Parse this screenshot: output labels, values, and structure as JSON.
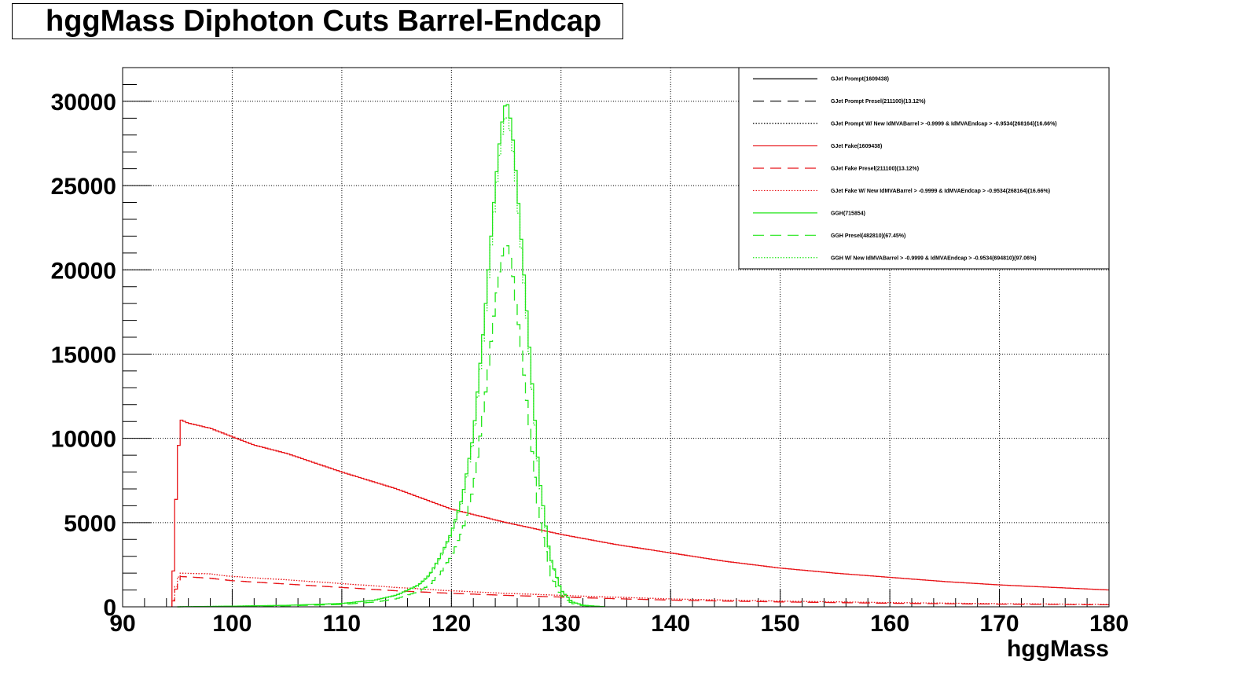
{
  "chart_data": {
    "type": "line",
    "title": "hggMass Diphoton Cuts Barrel-Endcap",
    "xlabel": "hggMass",
    "ylabel": "",
    "xlim": [
      90,
      180
    ],
    "ylim": [
      0,
      32000
    ],
    "x_ticks": [
      "90",
      "100",
      "110",
      "120",
      "130",
      "140",
      "150",
      "160",
      "170",
      "180"
    ],
    "y_ticks": [
      "0",
      "5000",
      "10000",
      "15000",
      "20000",
      "25000",
      "30000"
    ],
    "grid": true,
    "legend_position": "top-right",
    "series": [
      {
        "name": "GJet Prompt(1609438)",
        "color": "#000000",
        "style": "solid",
        "points": []
      },
      {
        "name": "GJet Prompt Presel(211100)(13.12%)",
        "color": "#000000",
        "style": "dashed",
        "points": []
      },
      {
        "name": "GJet Prompt W/ New IdMVABarrel > -0.9999 & IdMVAEndcap > -0.9534(268164)(16.66%)",
        "color": "#000000",
        "style": "dotted",
        "points": []
      },
      {
        "name": "GJet Fake(1609438)",
        "color": "#e8161a",
        "style": "solid",
        "points": [
          [
            94.5,
            0
          ],
          [
            95,
            8500
          ],
          [
            95.3,
            11100
          ],
          [
            96,
            10900
          ],
          [
            98,
            10600
          ],
          [
            100,
            10100
          ],
          [
            102,
            9600
          ],
          [
            105,
            9100
          ],
          [
            110,
            8000
          ],
          [
            115,
            7000
          ],
          [
            120,
            5800
          ],
          [
            125,
            5000
          ],
          [
            130,
            4300
          ],
          [
            135,
            3700
          ],
          [
            140,
            3200
          ],
          [
            145,
            2700
          ],
          [
            150,
            2300
          ],
          [
            155,
            2000
          ],
          [
            160,
            1750
          ],
          [
            165,
            1500
          ],
          [
            170,
            1300
          ],
          [
            175,
            1150
          ],
          [
            180,
            1000
          ]
        ]
      },
      {
        "name": "GJet Fake Presel(211100)(13.12%)",
        "color": "#e8161a",
        "style": "dashed",
        "points": [
          [
            94.5,
            0
          ],
          [
            95,
            1400
          ],
          [
            95.3,
            1800
          ],
          [
            98,
            1700
          ],
          [
            100,
            1550
          ],
          [
            105,
            1350
          ],
          [
            110,
            1150
          ],
          [
            115,
            950
          ],
          [
            120,
            800
          ],
          [
            125,
            680
          ],
          [
            130,
            580
          ],
          [
            135,
            480
          ],
          [
            140,
            400
          ],
          [
            145,
            340
          ],
          [
            150,
            290
          ],
          [
            160,
            210
          ],
          [
            170,
            160
          ],
          [
            180,
            120
          ]
        ]
      },
      {
        "name": "GJet Fake W/ New IdMVABarrel > -0.9999 & IdMVAEndcap > -0.9534(268164)(16.66%)",
        "color": "#e8161a",
        "style": "dotted",
        "points": [
          [
            94.5,
            0
          ],
          [
            95,
            1600
          ],
          [
            95.3,
            2000
          ],
          [
            98,
            1950
          ],
          [
            100,
            1800
          ],
          [
            105,
            1600
          ],
          [
            110,
            1380
          ],
          [
            115,
            1150
          ],
          [
            120,
            950
          ],
          [
            125,
            800
          ],
          [
            130,
            680
          ],
          [
            135,
            570
          ],
          [
            140,
            470
          ],
          [
            145,
            400
          ],
          [
            150,
            340
          ],
          [
            160,
            250
          ],
          [
            170,
            190
          ],
          [
            180,
            145
          ]
        ]
      },
      {
        "name": "GGH(715854)",
        "color": "#22e61a",
        "style": "solid",
        "points": [
          [
            95,
            0
          ],
          [
            100,
            40
          ],
          [
            105,
            90
          ],
          [
            110,
            200
          ],
          [
            113,
            400
          ],
          [
            115,
            700
          ],
          [
            117,
            1300
          ],
          [
            118,
            1900
          ],
          [
            119,
            3000
          ],
          [
            120,
            4400
          ],
          [
            121,
            6500
          ],
          [
            122,
            10200
          ],
          [
            123,
            17000
          ],
          [
            124,
            25000
          ],
          [
            124.5,
            28300
          ],
          [
            125,
            30200
          ],
          [
            125.5,
            28600
          ],
          [
            126,
            25000
          ],
          [
            127,
            16500
          ],
          [
            128,
            7800
          ],
          [
            129,
            3000
          ],
          [
            130,
            1000
          ],
          [
            131,
            300
          ],
          [
            132,
            100
          ],
          [
            134,
            0
          ]
        ]
      },
      {
        "name": "GGH Presel(482810)(67.45%)",
        "color": "#22e61a",
        "style": "dashed",
        "points": [
          [
            95,
            0
          ],
          [
            100,
            25
          ],
          [
            105,
            60
          ],
          [
            110,
            140
          ],
          [
            113,
            280
          ],
          [
            115,
            480
          ],
          [
            117,
            900
          ],
          [
            118,
            1300
          ],
          [
            119,
            2000
          ],
          [
            120,
            3000
          ],
          [
            121,
            4500
          ],
          [
            122,
            7000
          ],
          [
            123,
            12000
          ],
          [
            124,
            18000
          ],
          [
            124.5,
            20500
          ],
          [
            125,
            21800
          ],
          [
            125.5,
            20300
          ],
          [
            126,
            17500
          ],
          [
            127,
            11500
          ],
          [
            128,
            5400
          ],
          [
            129,
            2000
          ],
          [
            130,
            700
          ],
          [
            131,
            200
          ],
          [
            132,
            70
          ],
          [
            134,
            0
          ]
        ]
      },
      {
        "name": "GGH W/ New IdMVABarrel > -0.9999 & IdMVAEndcap > -0.9534(694810)(97.06%)",
        "color": "#22e61a",
        "style": "dotted",
        "points": [
          [
            95,
            0
          ],
          [
            100,
            38
          ],
          [
            105,
            88
          ],
          [
            110,
            195
          ],
          [
            113,
            390
          ],
          [
            115,
            680
          ],
          [
            117,
            1260
          ],
          [
            118,
            1850
          ],
          [
            119,
            2920
          ],
          [
            120,
            4300
          ],
          [
            121,
            6350
          ],
          [
            122,
            9950
          ],
          [
            123,
            16600
          ],
          [
            124,
            24400
          ],
          [
            124.5,
            27600
          ],
          [
            125,
            29400
          ],
          [
            125.5,
            27900
          ],
          [
            126,
            24400
          ],
          [
            127,
            16100
          ],
          [
            128,
            7600
          ],
          [
            129,
            2900
          ],
          [
            130,
            970
          ],
          [
            131,
            290
          ],
          [
            132,
            95
          ],
          [
            134,
            0
          ]
        ]
      }
    ]
  }
}
